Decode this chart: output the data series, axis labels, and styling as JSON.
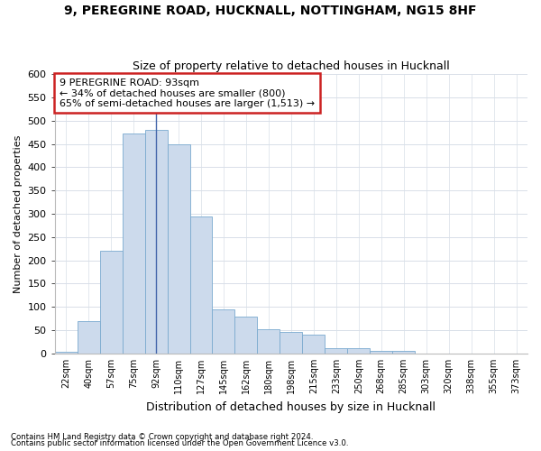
{
  "title_line1": "9, PEREGRINE ROAD, HUCKNALL, NOTTINGHAM, NG15 8HF",
  "title_line2": "Size of property relative to detached houses in Hucknall",
  "xlabel": "Distribution of detached houses by size in Hucknall",
  "ylabel": "Number of detached properties",
  "bar_labels": [
    "22sqm",
    "40sqm",
    "57sqm",
    "75sqm",
    "92sqm",
    "110sqm",
    "127sqm",
    "145sqm",
    "162sqm",
    "180sqm",
    "198sqm",
    "215sqm",
    "233sqm",
    "250sqm",
    "268sqm",
    "285sqm",
    "303sqm",
    "320sqm",
    "338sqm",
    "355sqm",
    "373sqm"
  ],
  "bar_values": [
    4,
    70,
    220,
    473,
    480,
    450,
    295,
    95,
    80,
    53,
    46,
    40,
    12,
    12,
    5,
    5,
    0,
    0,
    0,
    0,
    0
  ],
  "bar_color": "#ccdaec",
  "bar_edge_color": "#7aaacf",
  "grid_color": "#d8dfe8",
  "background_color": "#ffffff",
  "fig_background": "#ffffff",
  "annotation_title": "9 PEREGRINE ROAD: 93sqm",
  "annotation_line2": "← 34% of detached houses are smaller (800)",
  "annotation_line3": "65% of semi-detached houses are larger (1,513) →",
  "vline_color": "#4466aa",
  "annotation_box_color": "#ffffff",
  "annotation_box_edge": "#cc2222",
  "ylim": [
    0,
    600
  ],
  "yticks": [
    0,
    50,
    100,
    150,
    200,
    250,
    300,
    350,
    400,
    450,
    500,
    550,
    600
  ],
  "footnote1": "Contains HM Land Registry data © Crown copyright and database right 2024.",
  "footnote2": "Contains public sector information licensed under the Open Government Licence v3.0."
}
